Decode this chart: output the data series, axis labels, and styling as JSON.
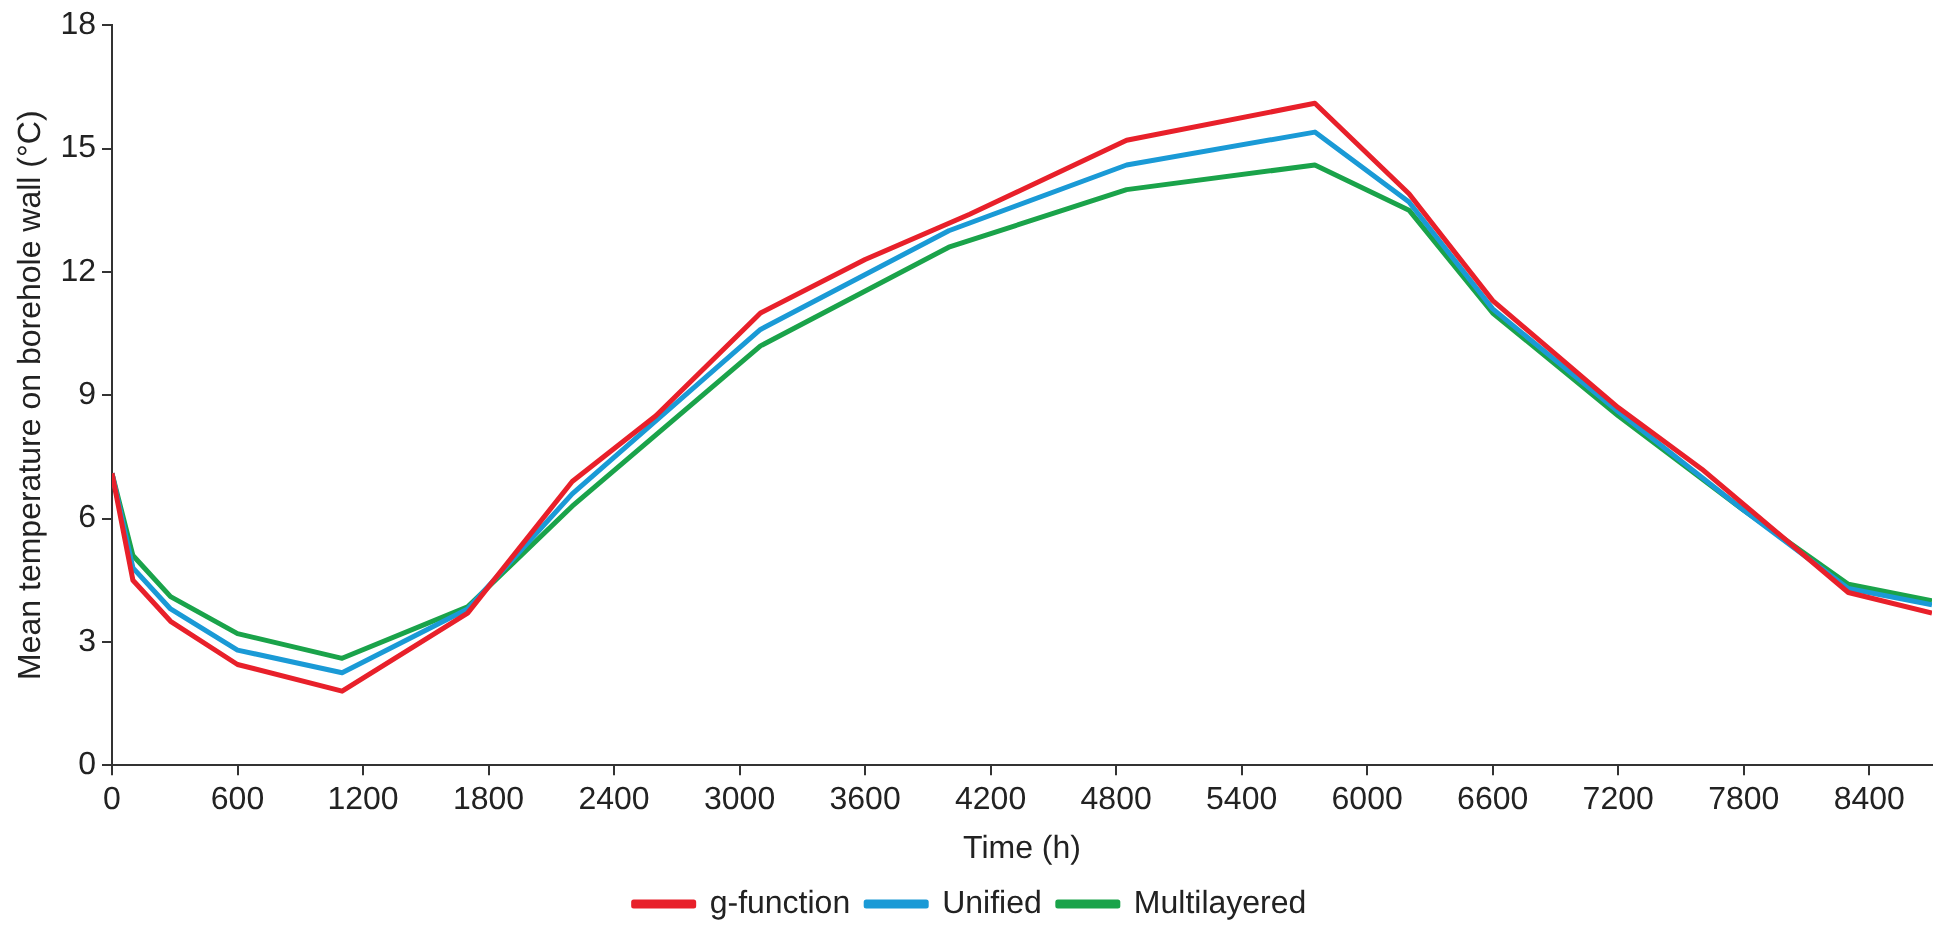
{
  "chart_data": {
    "type": "line",
    "xlabel": "Time (h)",
    "ylabel": "Mean temperature on borehole wall (°C)",
    "xlim": [
      0,
      8700
    ],
    "xticks": [
      0,
      600,
      1200,
      1800,
      2400,
      3000,
      3600,
      4200,
      4800,
      5400,
      6000,
      6600,
      7200,
      7800,
      8400
    ],
    "ylim": [
      0,
      18
    ],
    "yticks": [
      0,
      3,
      6,
      9,
      12,
      15,
      18
    ],
    "grid": false,
    "legend": "bottom",
    "marker": "none",
    "series": [
      {
        "name": "g-function",
        "color": "#e8202a",
        "x": [
          0,
          100,
          280,
          600,
          1100,
          1700,
          2200,
          2600,
          3100,
          3600,
          4100,
          4850,
          5750,
          6200,
          6600,
          7200,
          7600,
          8300,
          8700
        ],
        "values": [
          7.1,
          4.5,
          3.5,
          2.45,
          1.8,
          3.7,
          6.9,
          8.5,
          11.0,
          12.3,
          13.4,
          15.2,
          16.1,
          13.9,
          11.3,
          8.7,
          7.2,
          4.2,
          3.7
        ]
      },
      {
        "name": "Unified",
        "color": "#1a9ad6",
        "x": [
          0,
          100,
          280,
          600,
          1100,
          1700,
          2200,
          3100,
          4000,
          4850,
          5750,
          6200,
          6600,
          7200,
          7800,
          8300,
          8700
        ],
        "values": [
          7.1,
          4.8,
          3.8,
          2.8,
          2.25,
          3.8,
          6.6,
          10.6,
          13.0,
          14.6,
          15.4,
          13.7,
          11.1,
          8.6,
          6.2,
          4.3,
          3.9
        ]
      },
      {
        "name": "Multilayered",
        "color": "#1aa34a",
        "x": [
          0,
          100,
          280,
          600,
          1100,
          1700,
          2200,
          3100,
          4000,
          4850,
          5750,
          6200,
          6600,
          7200,
          7800,
          8300,
          8700
        ],
        "values": [
          7.1,
          5.1,
          4.1,
          3.2,
          2.6,
          3.85,
          6.3,
          10.2,
          12.6,
          14.0,
          14.6,
          13.5,
          11.0,
          8.5,
          6.2,
          4.4,
          4.0
        ]
      }
    ]
  }
}
